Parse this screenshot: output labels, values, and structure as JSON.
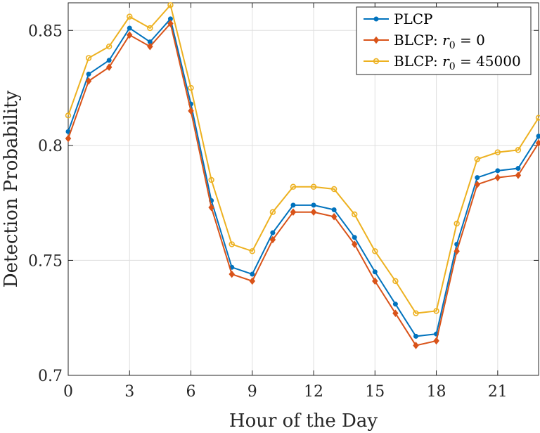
{
  "chart_data": {
    "type": "line",
    "title": "",
    "xlabel": "Hour of the Day",
    "ylabel": "Detection Probability",
    "xlim": [
      0,
      23
    ],
    "ylim": [
      0.7,
      0.862
    ],
    "xticks": [
      0,
      3,
      6,
      9,
      12,
      15,
      18,
      21
    ],
    "xtick_labels": [
      "0",
      "3",
      "6",
      "9",
      "12",
      "15",
      "18",
      "21"
    ],
    "yticks": [
      0.7,
      0.75,
      0.8,
      0.85
    ],
    "ytick_labels": [
      "0.7",
      "0.75",
      "0.8",
      "0.85"
    ],
    "grid": true,
    "legend_position": "top-right",
    "x": [
      0,
      1,
      2,
      3,
      4,
      5,
      6,
      7,
      8,
      9,
      10,
      11,
      12,
      13,
      14,
      15,
      16,
      17,
      18,
      19,
      20,
      21,
      22,
      23
    ],
    "series": [
      {
        "name": "PLCP",
        "color": "#0072BD",
        "marker": "circle",
        "values": [
          0.806,
          0.831,
          0.837,
          0.851,
          0.845,
          0.855,
          0.818,
          0.776,
          0.747,
          0.744,
          0.762,
          0.774,
          0.774,
          0.772,
          0.76,
          0.745,
          0.731,
          0.717,
          0.718,
          0.757,
          0.786,
          0.789,
          0.79,
          0.804
        ]
      },
      {
        "name": "BLCP: r0 = 0",
        "legend_prefix": "BLCP: ",
        "legend_math": "r",
        "legend_sub": "0",
        "legend_suffix": " = 0",
        "color": "#D95319",
        "marker": "diamond",
        "values": [
          0.803,
          0.828,
          0.834,
          0.848,
          0.843,
          0.853,
          0.815,
          0.773,
          0.744,
          0.741,
          0.759,
          0.771,
          0.771,
          0.769,
          0.757,
          0.741,
          0.727,
          0.713,
          0.715,
          0.754,
          0.783,
          0.786,
          0.787,
          0.801
        ]
      },
      {
        "name": "BLCP: r0 = 45000",
        "legend_prefix": "BLCP: ",
        "legend_math": "r",
        "legend_sub": "0",
        "legend_suffix": " = 45000",
        "color": "#EDB120",
        "marker": "circle-open",
        "values": [
          0.813,
          0.838,
          0.843,
          0.856,
          0.851,
          0.861,
          0.825,
          0.785,
          0.757,
          0.754,
          0.771,
          0.782,
          0.782,
          0.781,
          0.77,
          0.754,
          0.741,
          0.727,
          0.728,
          0.766,
          0.794,
          0.797,
          0.798,
          0.812
        ]
      }
    ]
  }
}
